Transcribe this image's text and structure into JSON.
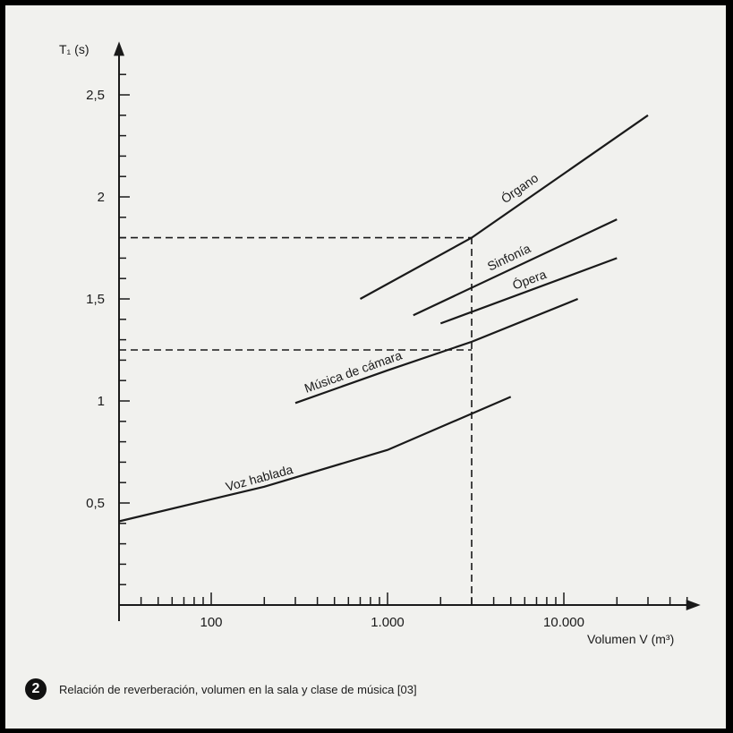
{
  "chart_data": {
    "type": "line",
    "x_scale": "log",
    "xlim": [
      30,
      50000
    ],
    "ylim": [
      0,
      2.7
    ],
    "ylabel": "T₁ (s)",
    "xlabel": "Volumen V (m³)",
    "yticks": [
      {
        "value": 0.5,
        "label": "0,5"
      },
      {
        "value": 1,
        "label": "1"
      },
      {
        "value": 1.5,
        "label": "1,5"
      },
      {
        "value": 2,
        "label": "2"
      },
      {
        "value": 2.5,
        "label": "2,5"
      }
    ],
    "xticks": [
      {
        "value": 100,
        "label": "100"
      },
      {
        "value": 1000,
        "label": "1.000"
      },
      {
        "value": 10000,
        "label": "10.000"
      }
    ],
    "series": [
      {
        "name": "Voz hablada",
        "x": [
          30,
          200,
          1000,
          5000
        ],
        "y": [
          0.41,
          0.58,
          0.76,
          1.02
        ]
      },
      {
        "name": "Música de cámara",
        "x": [
          300,
          1000,
          3000,
          12000
        ],
        "y": [
          0.99,
          1.15,
          1.29,
          1.5
        ]
      },
      {
        "name": "Ópera",
        "x": [
          2000,
          20000
        ],
        "y": [
          1.38,
          1.7
        ]
      },
      {
        "name": "Sinfonía",
        "x": [
          1400,
          20000
        ],
        "y": [
          1.42,
          1.89
        ]
      },
      {
        "name": "Órgano",
        "x": [
          700,
          3000,
          30000
        ],
        "y": [
          1.5,
          1.8,
          2.4
        ]
      }
    ],
    "reference_lines": {
      "x": 3000,
      "y": [
        1.25,
        1.8
      ]
    },
    "grid": false,
    "legend": "none"
  },
  "caption": {
    "number": "2",
    "text": "Relación de reverberación, volumen en la sala y clase de música [03]"
  }
}
